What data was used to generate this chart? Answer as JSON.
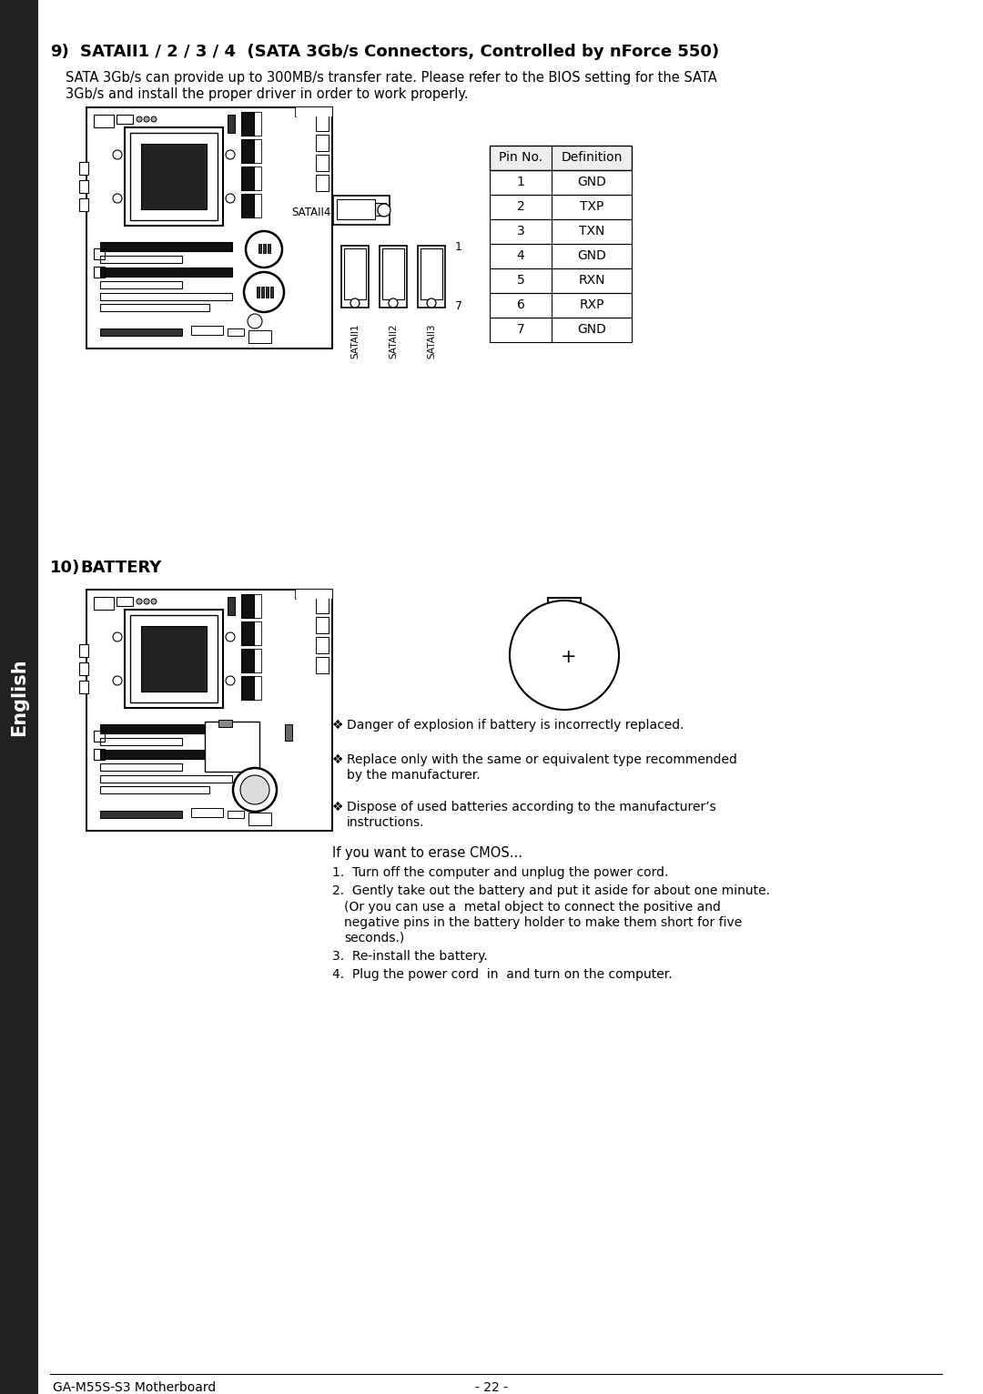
{
  "bg_color": "#ffffff",
  "sidebar_color": "#222222",
  "sidebar_text": "English",
  "section9_number": "9)",
  "section9_title_bold": "SATAII1 / 2 / 3 / 4  (SATA 3Gb/s Connectors, Controlled by nForce 550)",
  "section9_body1": "SATA 3Gb/s can provide up to 300MB/s transfer rate. Please refer to the BIOS setting for the SATA",
  "section9_body2": "3Gb/s and install the proper driver in order to work properly.",
  "table_headers": [
    "Pin No.",
    "Definition"
  ],
  "table_rows": [
    [
      "1",
      "GND"
    ],
    [
      "2",
      "TXP"
    ],
    [
      "3",
      "TXN"
    ],
    [
      "4",
      "GND"
    ],
    [
      "5",
      "RXN"
    ],
    [
      "6",
      "RXP"
    ],
    [
      "7",
      "GND"
    ]
  ],
  "section10_number": "10)",
  "section10_title_bold": "BATTERY",
  "battery_warnings": [
    "Danger of explosion if battery is incorrectly replaced.",
    "Replace only with the same or equivalent type recommended",
    "by the manufacturer.",
    "Dispose of used batteries according to the manufacturer’s",
    "instructions."
  ],
  "cmos_title": "If you want to erase CMOS...",
  "cmos_steps": [
    "Turn off the computer and unplug the power cord.",
    "Gently take out the battery and put it aside for about one minute.",
    "(Or you can use a  metal object to connect the positive and",
    "negative pins in the battery holder to make them short for five",
    "seconds.)",
    "Re-install the battery.",
    "Plug the power cord  in  and turn on the computer."
  ],
  "footer_left": "GA-M55S-S3 Motherboard",
  "footer_center": "- 22 -"
}
